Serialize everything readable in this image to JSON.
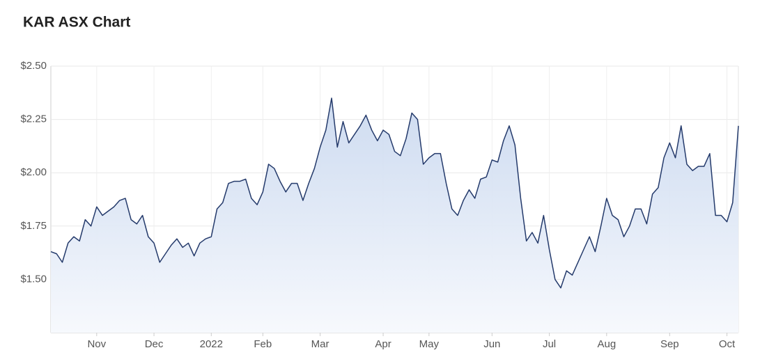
{
  "chart_data": {
    "type": "area",
    "title": "KAR ASX Chart",
    "categories": [
      null,
      null,
      null,
      null,
      null,
      null,
      null,
      null,
      "Nov",
      null,
      null,
      null,
      null,
      null,
      null,
      null,
      null,
      null,
      "Dec",
      null,
      null,
      null,
      null,
      null,
      null,
      null,
      null,
      null,
      "2022",
      null,
      null,
      null,
      null,
      null,
      null,
      null,
      null,
      "Feb",
      null,
      null,
      null,
      null,
      null,
      null,
      null,
      null,
      null,
      "Mar",
      null,
      null,
      null,
      null,
      null,
      null,
      null,
      null,
      null,
      null,
      "Apr",
      null,
      null,
      null,
      null,
      null,
      null,
      null,
      "May",
      null,
      null,
      null,
      null,
      null,
      null,
      null,
      null,
      null,
      null,
      "Jun",
      null,
      null,
      null,
      null,
      null,
      null,
      null,
      null,
      null,
      "Jul",
      null,
      null,
      null,
      null,
      null,
      null,
      null,
      null,
      null,
      "Aug",
      null,
      null,
      null,
      null,
      null,
      null,
      null,
      null,
      null,
      null,
      "Sep",
      null,
      null,
      null,
      null,
      null,
      null,
      null,
      null,
      null,
      "Oct",
      null,
      null
    ],
    "values": [
      1.63,
      1.62,
      1.58,
      1.67,
      1.7,
      1.68,
      1.78,
      1.75,
      1.84,
      1.8,
      1.82,
      1.84,
      1.87,
      1.88,
      1.78,
      1.76,
      1.8,
      1.7,
      1.67,
      1.58,
      1.62,
      1.66,
      1.69,
      1.65,
      1.67,
      1.61,
      1.67,
      1.69,
      1.7,
      1.83,
      1.86,
      1.95,
      1.96,
      1.96,
      1.97,
      1.88,
      1.85,
      1.91,
      2.04,
      2.02,
      1.96,
      1.91,
      1.95,
      1.95,
      1.87,
      1.95,
      2.02,
      2.12,
      2.2,
      2.35,
      2.12,
      2.24,
      2.14,
      2.18,
      2.22,
      2.27,
      2.2,
      2.15,
      2.2,
      2.18,
      2.1,
      2.08,
      2.16,
      2.28,
      2.25,
      2.04,
      2.07,
      2.09,
      2.09,
      1.95,
      1.83,
      1.8,
      1.87,
      1.92,
      1.88,
      1.97,
      1.98,
      2.06,
      2.05,
      2.15,
      2.22,
      2.13,
      1.88,
      1.68,
      1.72,
      1.67,
      1.8,
      1.64,
      1.5,
      1.46,
      1.54,
      1.52,
      1.58,
      1.64,
      1.7,
      1.63,
      1.75,
      1.88,
      1.8,
      1.78,
      1.7,
      1.75,
      1.83,
      1.83,
      1.76,
      1.9,
      1.93,
      2.07,
      2.14,
      2.07,
      2.22,
      2.04,
      2.01,
      2.03,
      2.03,
      2.09,
      1.8,
      1.8,
      1.77,
      1.86,
      2.22
    ],
    "color": "#243a6b",
    "fill_color": "#c9d8ef",
    "ylim": [
      1.25,
      2.5
    ],
    "yticks": [
      {
        "value": 1.5,
        "label": "$1.50"
      },
      {
        "value": 1.75,
        "label": "$1.75"
      },
      {
        "value": 2.0,
        "label": "$2.00"
      },
      {
        "value": 2.25,
        "label": "$2.25"
      },
      {
        "value": 2.5,
        "label": "$2.50"
      }
    ],
    "grid": true
  }
}
